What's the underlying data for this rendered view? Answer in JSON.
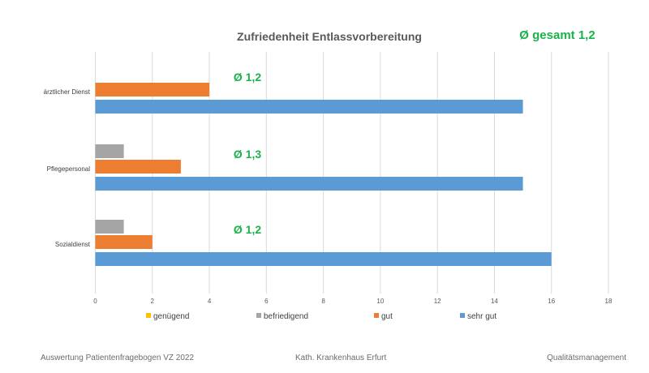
{
  "overall_label": "Ø gesamt 1,2",
  "chart_data": {
    "type": "bar",
    "orientation": "horizontal",
    "title": "Zufriedenheit Entlassvorbereitung",
    "categories": [
      "ärztlicher Dienst",
      "Pflegepersonal",
      "Sozialdienst"
    ],
    "averages": [
      "Ø 1,2",
      "Ø 1,3",
      "Ø 1,2"
    ],
    "series": [
      {
        "name": "genügend",
        "color": "#ffc000",
        "values": [
          0,
          0,
          0
        ]
      },
      {
        "name": "befriedigend",
        "color": "#a5a5a5",
        "values": [
          0,
          1,
          1
        ]
      },
      {
        "name": "gut",
        "color": "#ed7d31",
        "values": [
          4,
          3,
          2
        ]
      },
      {
        "name": "sehr gut",
        "color": "#5b9bd5",
        "values": [
          15,
          15,
          16
        ]
      }
    ],
    "xlim": [
      0,
      18
    ],
    "xticks": [
      0,
      2,
      4,
      6,
      8,
      10,
      12,
      14,
      16,
      18
    ],
    "grid": true,
    "legend_position": "bottom"
  },
  "footer": {
    "left": "Auswertung Patientenfragebogen VZ 2022",
    "center": "Kath. Krankenhaus Erfurt",
    "right": "Qualitätsmanagement"
  }
}
